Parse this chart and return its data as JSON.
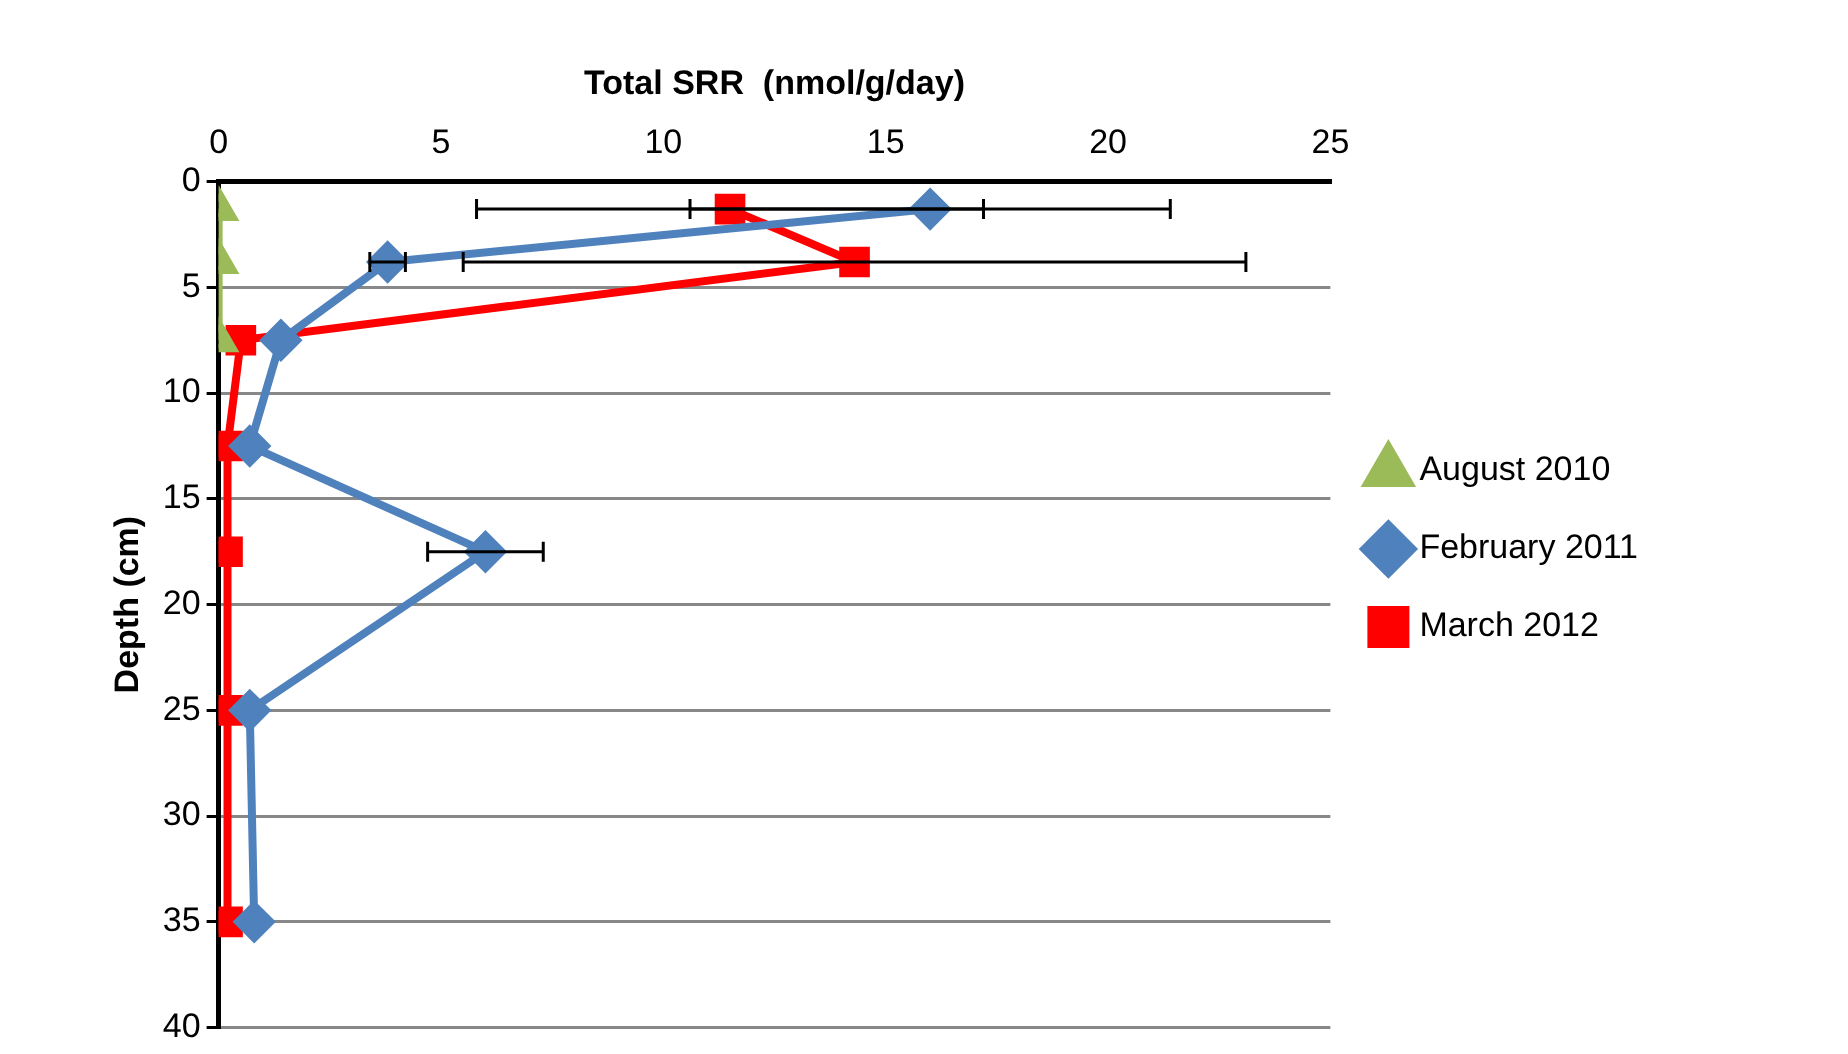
{
  "chart_data": {
    "type": "line",
    "xlabel": "Total SRR  (nmol/g/day)",
    "ylabel": "Depth (cm)",
    "xlim": [
      0,
      25
    ],
    "xticks": [
      0,
      5,
      10,
      15,
      20,
      25
    ],
    "ylim": [
      40,
      0
    ],
    "yticks": [
      0,
      5,
      10,
      15,
      20,
      25,
      30,
      35,
      40
    ],
    "grid": "y",
    "legend": "right",
    "line_style": "solid",
    "series": [
      {
        "name": "August 2010",
        "color": "#9bbb59",
        "marker": "triangle",
        "x": [
          0,
          0,
          0
        ],
        "values": [
          1.3,
          3.8,
          7.5
        ]
      },
      {
        "name": "February 2011",
        "color": "#4f81bd",
        "marker": "diamond",
        "x": [
          16,
          3.8,
          1.4,
          0.7,
          6,
          0.7,
          0.8
        ],
        "values": [
          1.3,
          3.8,
          7.5,
          12.5,
          17.5,
          25,
          35
        ],
        "xerrors": [
          5.4,
          0.4,
          null,
          null,
          1.3,
          null,
          null
        ]
      },
      {
        "name": "March 2012",
        "color": "#ff0000",
        "marker": "square",
        "x": [
          11.5,
          14.3,
          0.5,
          0.2,
          0.2,
          0.2,
          0.2
        ],
        "values": [
          1.3,
          3.8,
          7.5,
          12.5,
          17.5,
          25,
          35
        ],
        "xerrors": [
          5.7,
          8.8,
          null,
          null,
          null,
          null,
          null
        ]
      }
    ]
  }
}
